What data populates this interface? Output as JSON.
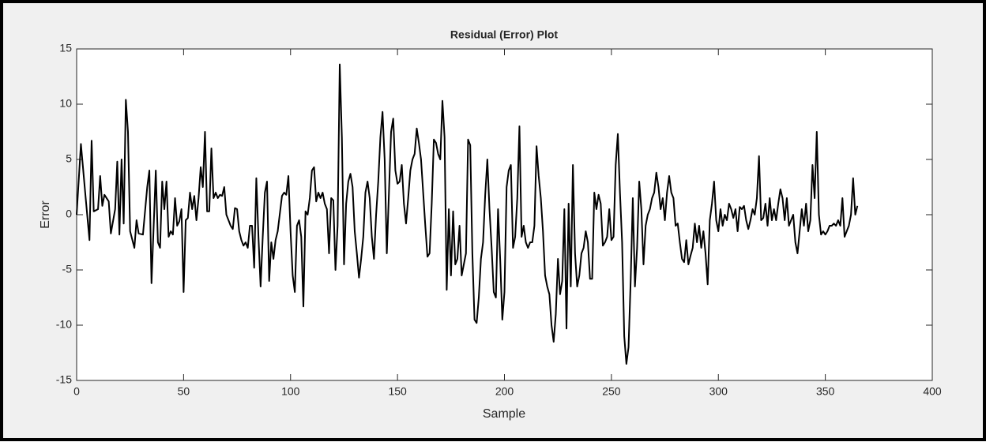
{
  "chart_data": {
    "type": "line",
    "title": "Residual (Error) Plot",
    "xlabel": "Sample",
    "ylabel": "Error",
    "color": "#000000",
    "xlim": [
      0,
      400
    ],
    "xticks": [
      0,
      50,
      100,
      150,
      200,
      250,
      300,
      350,
      400
    ],
    "ylim": [
      -15,
      15
    ],
    "yticks": [
      -15,
      -10,
      -5,
      0,
      5,
      10,
      15
    ],
    "x": [
      0,
      2,
      4,
      6,
      7,
      8,
      10,
      11,
      12,
      13,
      15,
      16,
      18,
      19,
      20,
      21,
      22,
      23,
      24,
      25,
      27,
      28,
      29,
      31,
      33,
      34,
      35,
      37,
      38,
      39,
      40,
      41,
      42,
      43,
      44,
      45,
      46,
      47,
      48,
      49,
      50,
      51,
      52,
      53,
      54,
      55,
      56,
      57,
      58,
      59,
      60,
      61,
      62,
      63,
      64,
      65,
      66,
      67,
      68,
      69,
      70,
      72,
      73,
      74,
      75,
      76,
      77,
      78,
      79,
      80,
      81,
      82,
      83,
      84,
      85,
      86,
      87,
      88,
      89,
      90,
      91,
      92,
      93,
      94,
      96,
      97,
      98,
      99,
      100,
      101,
      102,
      103,
      104,
      105,
      106,
      107,
      108,
      109,
      110,
      111,
      112,
      113,
      114,
      115,
      116,
      117,
      118,
      119,
      120,
      121,
      122,
      123,
      124,
      125,
      126,
      127,
      128,
      129,
      130,
      131,
      132,
      133,
      134,
      135,
      136,
      137,
      138,
      139,
      140,
      141,
      142,
      143,
      144,
      145,
      146,
      147,
      148,
      149,
      150,
      151,
      152,
      153,
      154,
      155,
      156,
      157,
      158,
      159,
      160,
      161,
      162,
      163,
      164,
      165,
      166,
      167,
      168,
      169,
      170,
      171,
      172,
      173,
      174,
      175,
      176,
      177,
      178,
      179,
      180,
      181,
      182,
      183,
      184,
      185,
      186,
      187,
      188,
      189,
      190,
      191,
      192,
      193,
      194,
      195,
      196,
      197,
      198,
      199,
      200,
      201,
      202,
      203,
      204,
      205,
      206,
      207,
      208,
      209,
      210,
      211,
      212,
      213,
      214,
      215,
      216,
      217,
      218,
      219,
      220,
      221,
      222,
      223,
      224,
      225,
      226,
      227,
      228,
      229,
      230,
      231,
      232,
      233,
      234,
      235,
      236,
      237,
      238,
      239,
      240,
      241,
      242,
      243,
      244,
      245,
      246,
      247,
      248,
      249,
      250,
      251,
      252,
      253,
      254,
      255,
      256,
      257,
      258,
      259,
      260,
      261,
      262,
      263,
      264,
      265,
      266,
      267,
      268,
      269,
      270,
      271,
      272,
      273,
      274,
      275,
      276,
      277,
      278,
      279,
      280,
      281,
      282,
      283,
      284,
      285,
      286,
      287,
      288,
      289,
      290,
      291,
      292,
      293,
      294,
      295,
      296,
      297,
      298,
      299,
      300,
      301,
      302,
      303,
      304,
      305,
      306,
      307,
      308,
      309,
      310,
      311,
      312,
      313,
      314,
      315,
      316,
      317,
      318,
      319,
      320,
      321,
      322,
      323,
      324,
      325,
      326,
      327,
      328,
      329,
      330,
      331,
      332,
      333,
      334,
      335,
      336,
      337,
      338,
      339,
      340,
      341,
      342,
      343,
      344,
      345,
      346,
      347,
      348,
      349,
      350,
      351,
      352,
      353,
      354,
      355,
      356,
      357,
      358,
      359,
      360,
      361,
      362,
      363,
      364,
      365
    ],
    "values": [
      0,
      6.4,
      2,
      -2.3,
      6.7,
      0.3,
      0.5,
      3.5,
      0.8,
      1.8,
      1.2,
      -1.7,
      0.5,
      4.8,
      -1.8,
      5,
      -0.8,
      10.4,
      7.5,
      -1.5,
      -3,
      -0.5,
      -1.7,
      -1.8,
      2.5,
      4,
      -6.2,
      4,
      -2.5,
      -3,
      3,
      0.5,
      3,
      -2,
      -1.5,
      -1.8,
      1.5,
      -1,
      -0.6,
      0.5,
      -7,
      -0.5,
      -0.3,
      2,
      0.5,
      1.7,
      -0.5,
      1.5,
      4.3,
      2.5,
      7.5,
      0.3,
      0.3,
      6,
      1.5,
      2,
      1.5,
      1.8,
      1.7,
      2.5,
      0,
      -1,
      -1.3,
      0.6,
      0.5,
      -1.5,
      -2.3,
      -2.8,
      -2.5,
      -3,
      -1,
      -1,
      -4.8,
      3.3,
      -2,
      -6.5,
      -2,
      2,
      3,
      -6,
      -2.5,
      -4,
      -2.3,
      -1.5,
      1.7,
      2,
      1.8,
      3.5,
      -1.5,
      -5.5,
      -7,
      -1,
      -0.5,
      -2,
      -8.3,
      0.3,
      0,
      1.5,
      4,
      4.3,
      1.2,
      2,
      1.5,
      2,
      1,
      0.5,
      -3.5,
      1.5,
      1.3,
      -5,
      -1,
      13.6,
      7,
      -4.5,
      1,
      3,
      3.7,
      2.5,
      -1.5,
      -3.5,
      -5.7,
      -4,
      -2,
      2,
      3,
      1.5,
      -2,
      -4,
      0,
      3,
      7,
      9.3,
      5,
      -3.5,
      2,
      7.5,
      8.7,
      4,
      2.8,
      3,
      4.5,
      1,
      -0.8,
      1.5,
      4,
      5,
      5.5,
      7.8,
      6.5,
      5,
      2,
      -1,
      -3.8,
      -3.5,
      1,
      6.8,
      6.5,
      5.5,
      5,
      10.3,
      7,
      -6.8,
      0.5,
      -5.5,
      0.3,
      -4.5,
      -4,
      -1,
      -5.5,
      -4.5,
      -3.5,
      6.8,
      6.3,
      -3.5,
      -9.5,
      -9.8,
      -7.5,
      -4,
      -2.5,
      1.8,
      5,
      0.5,
      -3,
      -7,
      -7.5,
      0.5,
      -4,
      -9.5,
      -7,
      2.5,
      4,
      4.5,
      -3,
      -2,
      1.5,
      8,
      -2,
      -1,
      -2.5,
      -3,
      -2.5,
      -2.5,
      -1,
      6.2,
      3.5,
      1.5,
      -1.5,
      -5.5,
      -6.5,
      -7.2,
      -10,
      -11.5,
      -9,
      -4,
      -7.2,
      -6,
      0.5,
      -10.3,
      1,
      -6.5,
      4.5,
      -3.5,
      -6.5,
      -5.5,
      -3.5,
      -3,
      -1.5,
      -2.5,
      -5.8,
      -5.8,
      2,
      0.5,
      1.8,
      1,
      -2.8,
      -2.5,
      -2,
      0.5,
      -2.3,
      -2,
      4.5,
      7.3,
      2,
      -2.5,
      -11,
      -13.5,
      -12,
      -6,
      1.5,
      -6.5,
      -3,
      3,
      0.5,
      -4.5,
      -1,
      0,
      0.5,
      1.5,
      2,
      3.8,
      2.5,
      0.5,
      1.5,
      -0.5,
      2,
      3.5,
      2,
      1.5,
      -1,
      -0.8,
      -2.5,
      -4,
      -4.3,
      -2.3,
      -4.5,
      -3.7,
      -3,
      -0.8,
      -2.5,
      -1,
      -3,
      -1.5,
      -3.5,
      -6.3,
      -0.5,
      1,
      3,
      -0.5,
      -1.5,
      0.5,
      -1,
      0,
      -0.5,
      1,
      0.5,
      -0.3,
      0.5,
      -1.5,
      0.7,
      0.5,
      0.8,
      -0.5,
      -1.3,
      -0.5,
      0.5,
      0,
      1.5,
      5.3,
      -0.5,
      -0.3,
      1,
      -1,
      1.5,
      -0.5,
      0.5,
      -0.5,
      1,
      2.3,
      1.5,
      -0.5,
      1.5,
      -1,
      -0.5,
      0,
      -2.5,
      -3.5,
      -1.5,
      0.5,
      -1,
      1,
      -1.5,
      -0.5,
      4.5,
      1.5,
      7.5,
      0,
      -1.8,
      -1.5,
      -1.8,
      -1.5,
      -1,
      -1,
      -0.8,
      -1,
      -0.5,
      -1,
      1.5,
      -2,
      -1.5,
      -1,
      0,
      3.3,
      0,
      0.8
    ]
  }
}
